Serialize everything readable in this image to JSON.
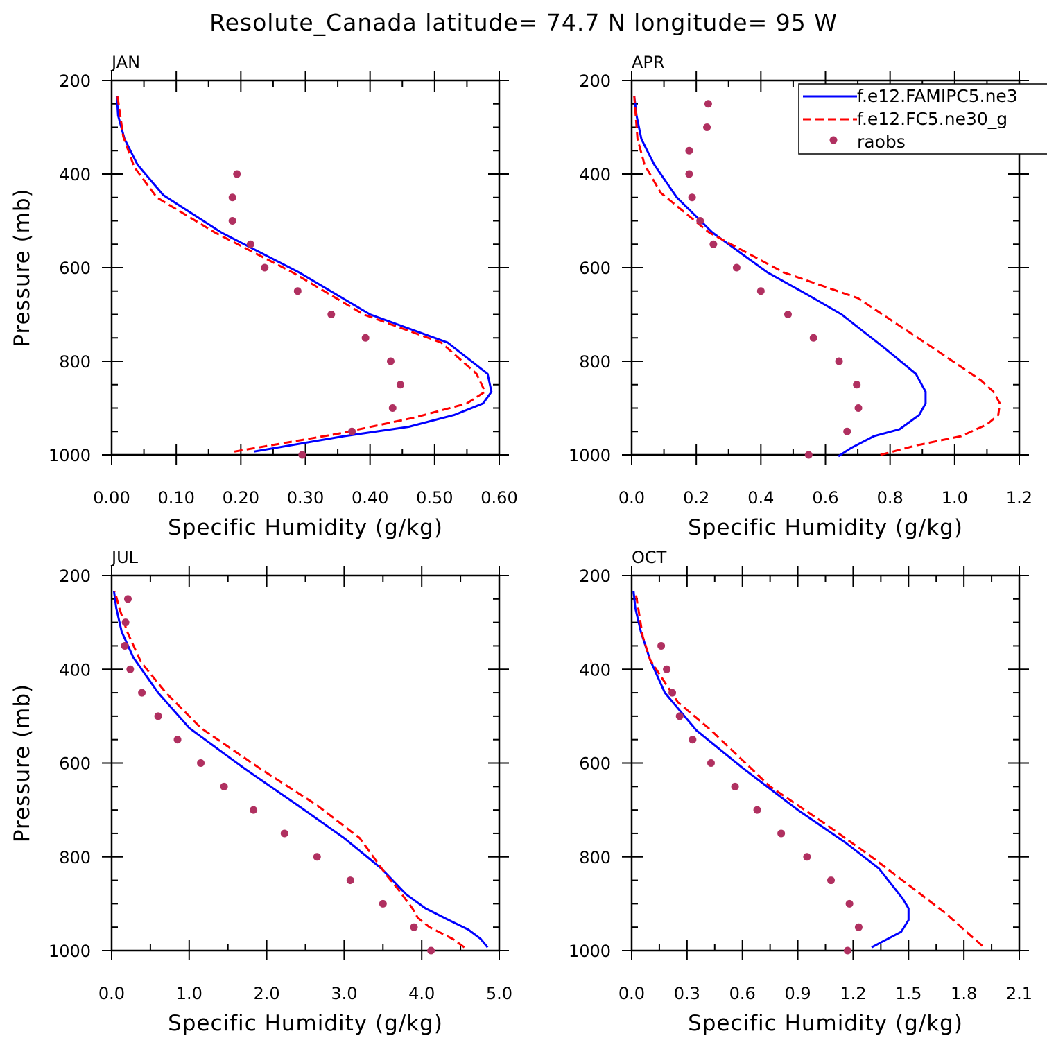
{
  "figure": {
    "title": "Resolute_Canada  latitude= 74.7 N longitude= 95 W"
  },
  "colors": {
    "model1": "#0000ff",
    "model2": "#ff0000",
    "raobs": "#b03060",
    "axis": "#000000",
    "background": "#ffffff"
  },
  "legend": {
    "placement": "top-right of APR panel",
    "entries": [
      {
        "label": "f.e12.FAMIPC5.ne3",
        "style": "solid",
        "color": "#0000ff"
      },
      {
        "label": "f.e12.FC5.ne30_g",
        "style": "dashed",
        "color": "#ff0000"
      },
      {
        "label": "raobs",
        "style": "marker",
        "color": "#b03060"
      }
    ]
  },
  "chart_data": [
    {
      "type": "line",
      "title": "JAN",
      "xlabel": "Specific Humidity (g/kg)",
      "ylabel": "Pressure (mb)",
      "xlim": [
        0,
        0.6
      ],
      "ylim": [
        1000,
        200
      ],
      "yscale": "linear, inverted",
      "xticks": [
        "0.00",
        "0.10",
        "0.20",
        "0.30",
        "0.40",
        "0.50",
        "0.60"
      ],
      "yticks": [
        "200",
        "400",
        "600",
        "800",
        "1000"
      ],
      "series": [
        {
          "name": "f.e12.FAMIPC5.ne3",
          "style": "solid",
          "x": [
            0.22,
            0.36,
            0.46,
            0.53,
            0.575,
            0.588,
            0.582,
            0.52,
            0.4,
            0.29,
            0.17,
            0.08,
            0.04,
            0.02,
            0.01,
            0.008
          ],
          "y": [
            993,
            960,
            940,
            915,
            890,
            865,
            827,
            760,
            700,
            610,
            525,
            445,
            380,
            325,
            275,
            233
          ]
        },
        {
          "name": "f.e12.FC5.ne30_g",
          "style": "dashed",
          "x": [
            0.19,
            0.35,
            0.47,
            0.55,
            0.578,
            0.565,
            0.51,
            0.39,
            0.28,
            0.16,
            0.07,
            0.035,
            0.018,
            0.009
          ],
          "y": [
            993,
            955,
            920,
            890,
            865,
            827,
            760,
            700,
            610,
            525,
            450,
            385,
            320,
            233
          ]
        }
      ],
      "points": {
        "name": "raobs",
        "x": [
          0.295,
          0.372,
          0.435,
          0.447,
          0.432,
          0.393,
          0.34,
          0.288,
          0.237,
          0.215,
          0.187,
          0.187,
          0.194
        ],
        "y": [
          1000,
          950,
          900,
          850,
          800,
          750,
          700,
          650,
          600,
          550,
          500,
          450,
          400
        ]
      }
    },
    {
      "type": "line",
      "title": "APR",
      "xlabel": "Specific Humidity (g/kg)",
      "ylabel": "",
      "xlim": [
        0,
        1.2
      ],
      "ylim": [
        1000,
        200
      ],
      "yscale": "linear, inverted",
      "xticks": [
        "0.0",
        "0.2",
        "0.4",
        "0.6",
        "0.8",
        "1.0",
        "1.2"
      ],
      "yticks": [
        "200",
        "400",
        "600",
        "800",
        "1000"
      ],
      "series": [
        {
          "name": "f.e12.FAMIPC5.ne3",
          "style": "solid",
          "x": [
            0.64,
            0.68,
            0.75,
            0.83,
            0.89,
            0.91,
            0.91,
            0.88,
            0.78,
            0.65,
            0.55,
            0.42,
            0.25,
            0.14,
            0.07,
            0.03,
            0.015,
            0.008
          ],
          "y": [
            1003,
            985,
            960,
            945,
            915,
            890,
            865,
            827,
            770,
            700,
            660,
            610,
            525,
            450,
            380,
            325,
            275,
            233
          ]
        },
        {
          "name": "f.e12.FC5.ne30_g",
          "style": "dashed",
          "x": [
            0.77,
            0.88,
            1.02,
            1.1,
            1.135,
            1.14,
            1.12,
            1.08,
            0.93,
            0.7,
            0.47,
            0.24,
            0.09,
            0.04,
            0.018,
            0.008
          ],
          "y": [
            1000,
            980,
            960,
            935,
            915,
            890,
            865,
            840,
            770,
            665,
            610,
            525,
            440,
            380,
            325,
            233
          ]
        }
      ],
      "points": {
        "name": "raobs",
        "x": [
          0.548,
          0.667,
          0.702,
          0.697,
          0.642,
          0.563,
          0.484,
          0.4,
          0.325,
          0.253,
          0.212,
          0.187,
          0.178,
          0.178,
          0.233,
          0.237
        ],
        "y": [
          1000,
          950,
          900,
          850,
          800,
          750,
          700,
          650,
          600,
          550,
          500,
          450,
          400,
          350,
          300,
          250
        ]
      }
    },
    {
      "type": "line",
      "title": "JUL",
      "xlabel": "Specific Humidity (g/kg)",
      "ylabel": "Pressure (mb)",
      "xlim": [
        0,
        5
      ],
      "ylim": [
        1000,
        200
      ],
      "yscale": "linear, inverted",
      "xticks": [
        "0.0",
        "1.0",
        "2.0",
        "3.0",
        "4.0",
        "5.0"
      ],
      "yticks": [
        "200",
        "400",
        "600",
        "800",
        "1000"
      ],
      "series": [
        {
          "name": "f.e12.FAMIPC5.ne3",
          "style": "solid",
          "x": [
            4.85,
            4.76,
            4.6,
            4.35,
            4.05,
            3.8,
            3.48,
            3.0,
            2.4,
            1.7,
            1.0,
            0.6,
            0.28,
            0.13,
            0.06,
            0.03
          ],
          "y": [
            993,
            975,
            955,
            935,
            910,
            880,
            825,
            760,
            690,
            610,
            525,
            450,
            375,
            320,
            270,
            233
          ]
        },
        {
          "name": "f.e12.FC5.ne30_g",
          "style": "dashed",
          "x": [
            4.55,
            4.4,
            4.1,
            3.95,
            3.88,
            3.7,
            3.55,
            3.2,
            2.65,
            1.9,
            1.15,
            0.7,
            0.38,
            0.2,
            0.1,
            0.04
          ],
          "y": [
            993,
            975,
            950,
            930,
            910,
            870,
            840,
            760,
            690,
            610,
            525,
            450,
            385,
            320,
            270,
            233
          ]
        }
      ],
      "points": {
        "name": "raobs",
        "x": [
          4.12,
          3.9,
          3.5,
          3.08,
          2.65,
          2.23,
          1.83,
          1.45,
          1.15,
          0.85,
          0.6,
          0.39,
          0.24,
          0.17,
          0.18,
          0.21
        ],
        "y": [
          1000,
          950,
          900,
          850,
          800,
          750,
          700,
          650,
          600,
          550,
          500,
          450,
          400,
          350,
          300,
          250
        ]
      }
    },
    {
      "type": "line",
      "title": "OCT",
      "xlabel": "Specific Humidity (g/kg)",
      "ylabel": "",
      "xlim": [
        0,
        2.1
      ],
      "ylim": [
        1000,
        200
      ],
      "yscale": "linear, inverted",
      "xticks": [
        "0.0",
        "0.3",
        "0.6",
        "0.9",
        "1.2",
        "1.5",
        "1.8",
        "2.1"
      ],
      "yticks": [
        "200",
        "400",
        "600",
        "800",
        "1000"
      ],
      "series": [
        {
          "name": "f.e12.FAMIPC5.ne3",
          "style": "solid",
          "x": [
            1.3,
            1.46,
            1.5,
            1.5,
            1.47,
            1.42,
            1.34,
            1.16,
            0.9,
            0.6,
            0.35,
            0.18,
            0.1,
            0.05,
            0.02,
            0.01
          ],
          "y": [
            993,
            960,
            935,
            910,
            890,
            865,
            825,
            770,
            700,
            610,
            530,
            450,
            380,
            320,
            270,
            233
          ]
        },
        {
          "name": "f.e12.FC5.ne30_g",
          "style": "dashed",
          "x": [
            1.9,
            1.8,
            1.7,
            1.5,
            1.3,
            1.05,
            0.75,
            0.43,
            0.25,
            0.1,
            0.06,
            0.04,
            0.02
          ],
          "y": [
            990,
            955,
            920,
            860,
            800,
            730,
            650,
            530,
            470,
            380,
            330,
            280,
            233
          ]
        }
      ],
      "points": {
        "name": "raobs",
        "x": [
          1.17,
          1.23,
          1.18,
          1.08,
          0.95,
          0.81,
          0.68,
          0.56,
          0.43,
          0.33,
          0.26,
          0.22,
          0.19,
          0.16
        ],
        "y": [
          1000,
          950,
          900,
          850,
          800,
          750,
          700,
          650,
          600,
          550,
          500,
          450,
          400,
          350
        ]
      }
    }
  ]
}
